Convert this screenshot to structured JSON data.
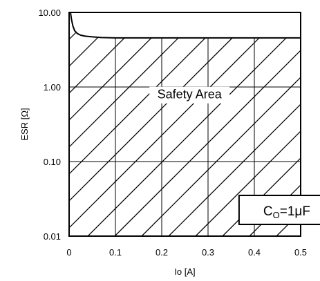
{
  "chart_data": {
    "type": "line",
    "xlabel": "Io [A]",
    "ylabel": "ESR [Ω]",
    "xlim": [
      0,
      0.5
    ],
    "ylim": [
      0.01,
      10
    ],
    "yscale": "log",
    "grid": true,
    "x_ticks": [
      "0",
      "0.1",
      "0.2",
      "0.3",
      "0.4",
      "0.5"
    ],
    "y_ticks": [
      "10.00",
      "1.00",
      "0.10",
      "0.01"
    ],
    "series": [
      {
        "x": [
          0.003,
          0.005,
          0.008,
          0.012,
          0.018,
          0.025,
          0.035,
          0.05,
          0.07,
          0.1,
          0.2,
          0.3,
          0.4,
          0.5
        ],
        "y": [
          10,
          8.2,
          6.6,
          5.7,
          5.2,
          4.95,
          4.8,
          4.7,
          4.6,
          4.55,
          4.55,
          4.55,
          4.55,
          4.55
        ]
      }
    ],
    "hatched_region": "below curve",
    "annotations": [
      {
        "text": "Safety Area",
        "x": 0.26,
        "y": 0.7
      },
      {
        "text_main": "C",
        "text_sub": "O",
        "text_rest": "=1μF",
        "x": 0.37,
        "y": 0.022
      }
    ]
  }
}
